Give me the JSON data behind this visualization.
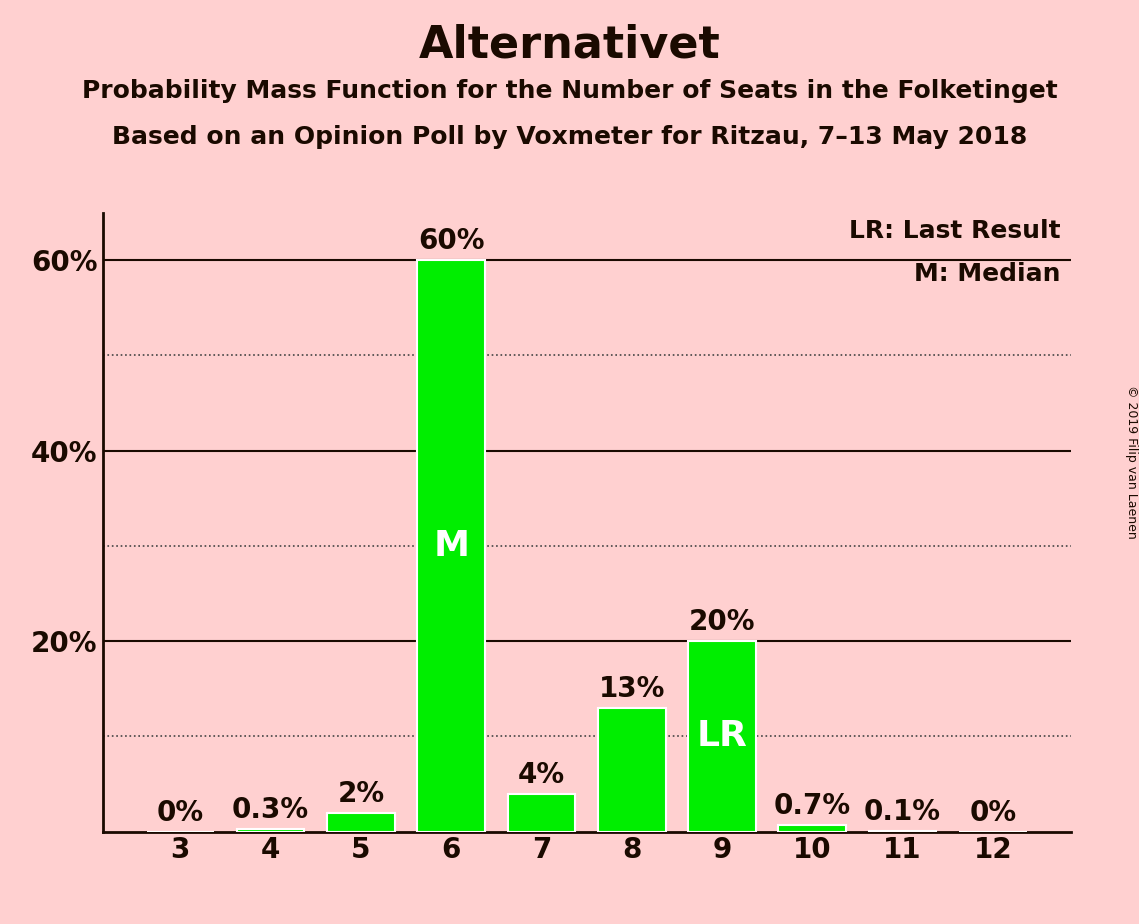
{
  "title": "Alternativet",
  "subtitle1": "Probability Mass Function for the Number of Seats in the Folketinget",
  "subtitle2": "Based on an Opinion Poll by Voxmeter for Ritzau, 7–13 May 2018",
  "copyright": "© 2019 Filip van Laenen",
  "categories": [
    3,
    4,
    5,
    6,
    7,
    8,
    9,
    10,
    11,
    12
  ],
  "values": [
    0.0,
    0.3,
    2.0,
    60.0,
    4.0,
    13.0,
    20.0,
    0.7,
    0.1,
    0.0
  ],
  "labels": [
    "0%",
    "0.3%",
    "2%",
    "60%",
    "4%",
    "13%",
    "20%",
    "0.7%",
    "0.1%",
    "0%"
  ],
  "bar_color": "#00ee00",
  "background_color": "#ffd0d0",
  "bar_edge_color": "#ffffff",
  "median_bar": 6,
  "last_result_bar": 9,
  "median_label": "M",
  "last_result_label": "LR",
  "legend_lr": "LR: Last Result",
  "legend_m": "M: Median",
  "ylim": [
    0,
    65
  ],
  "yticks_labeled": [
    20,
    40,
    60
  ],
  "ytick_labels": [
    "20%",
    "40%",
    "60%"
  ],
  "yticks_dotted": [
    10,
    30,
    50
  ],
  "yticks_solid": [
    20,
    40,
    60
  ],
  "title_fontsize": 32,
  "subtitle_fontsize": 18,
  "tick_fontsize": 20,
  "bar_label_fontsize": 20,
  "inner_label_fontsize": 26,
  "legend_fontsize": 18,
  "title_color": "#1a0a00",
  "text_color": "#1a0a00"
}
